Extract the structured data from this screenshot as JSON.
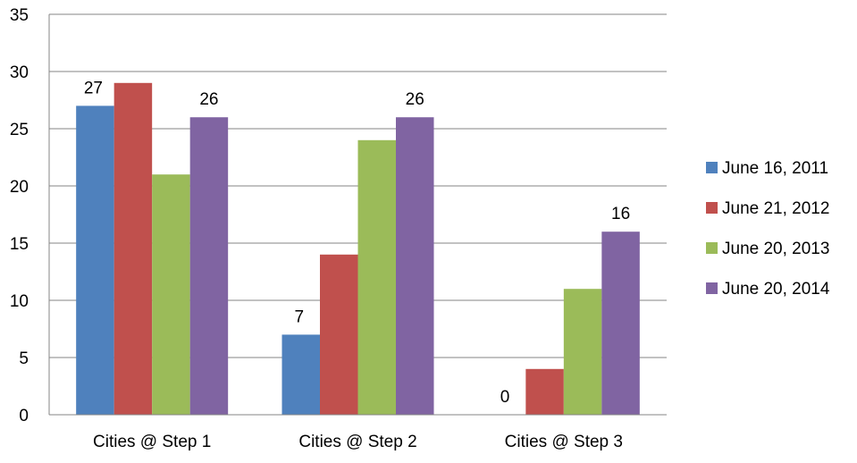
{
  "chart_data": {
    "type": "bar",
    "categories": [
      "Cities @ Step 1",
      "Cities @ Step 2",
      "Cities @ Step 3"
    ],
    "series": [
      {
        "name": "June 16, 2011",
        "color": "#4f81bd",
        "values": [
          27,
          7,
          0
        ]
      },
      {
        "name": "June 21, 2012",
        "color": "#c0504d",
        "values": [
          29,
          14,
          4
        ]
      },
      {
        "name": "June 20, 2013",
        "color": "#9bbb59",
        "values": [
          21,
          24,
          11
        ]
      },
      {
        "name": "June 20, 2014",
        "color": "#8064a2",
        "values": [
          26,
          26,
          16
        ]
      }
    ],
    "data_labels": [
      {
        "series": 0,
        "category": 0,
        "text": "27"
      },
      {
        "series": 3,
        "category": 0,
        "text": "26"
      },
      {
        "series": 0,
        "category": 1,
        "text": "7"
      },
      {
        "series": 3,
        "category": 1,
        "text": "26"
      },
      {
        "series": 0,
        "category": 2,
        "text": "0"
      },
      {
        "series": 3,
        "category": 2,
        "text": "16"
      }
    ],
    "y_ticks": [
      "0",
      "5",
      "10",
      "15",
      "20",
      "25",
      "30",
      "35"
    ],
    "ylim": [
      0,
      35
    ],
    "grid": true,
    "legend_position": "right"
  }
}
